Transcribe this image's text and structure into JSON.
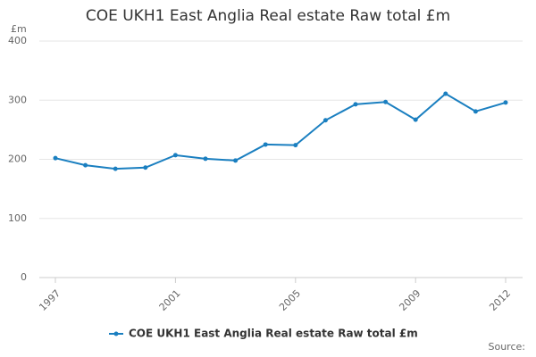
{
  "chart_data": {
    "type": "line",
    "title": "COE UKH1 East Anglia Real estate Raw total £m",
    "y_label": "£m",
    "source": "Source:",
    "x": [
      1997,
      1998,
      1999,
      2000,
      2001,
      2002,
      2003,
      2004,
      2005,
      2006,
      2007,
      2008,
      2009,
      2010,
      2011,
      2012
    ],
    "series": [
      {
        "name": "COE UKH1 East Anglia Real estate Raw total £m",
        "color": "#1a7fc0",
        "values": [
          202,
          190,
          184,
          186,
          207,
          201,
          198,
          225,
          224,
          266,
          293,
          297,
          267,
          311,
          281,
          296
        ]
      }
    ],
    "xlim": [
      1997,
      2012
    ],
    "xticks": [
      1997,
      2001,
      2005,
      2009,
      2012
    ],
    "ylim": [
      0,
      400
    ],
    "yticks": [
      0,
      100,
      200,
      300,
      400
    ],
    "grid": true
  }
}
